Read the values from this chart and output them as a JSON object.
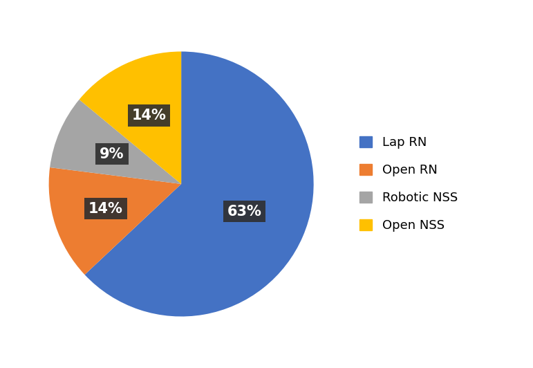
{
  "labels": [
    "Lap RN",
    "Open RN",
    "Robotic NSS",
    "Open NSS"
  ],
  "values": [
    63,
    14,
    9,
    14
  ],
  "colors": [
    "#4472C4",
    "#ED7D31",
    "#A5A5A5",
    "#FFC000"
  ],
  "pct_labels": [
    "63%",
    "14%",
    "9%",
    "14%"
  ],
  "legend_labels": [
    "Lap RN",
    "Open RN",
    "Robotic NSS",
    "Open NSS"
  ],
  "startangle": 90,
  "label_fontsize": 15,
  "legend_fontsize": 13,
  "label_color": "white",
  "label_bg_color": "#2F2F2F",
  "radii": [
    0.52,
    0.6,
    0.57,
    0.57
  ]
}
